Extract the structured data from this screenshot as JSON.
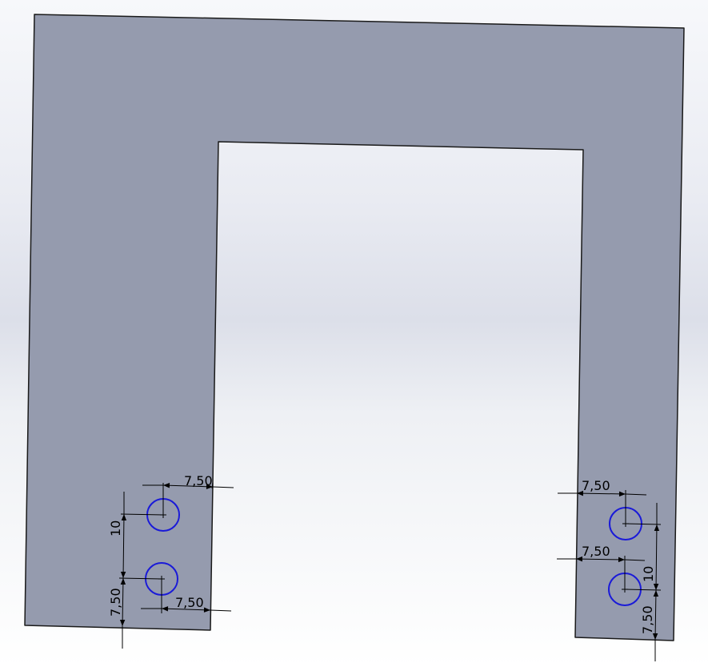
{
  "colors": {
    "part_fill": "#959bae",
    "part_edge": "#1a1a1a",
    "hole_stroke": "#1a1ad8",
    "dimension_line": "#000000"
  },
  "dimensions": {
    "hole_edge_offset": "7,50",
    "hole_spacing": "10"
  }
}
